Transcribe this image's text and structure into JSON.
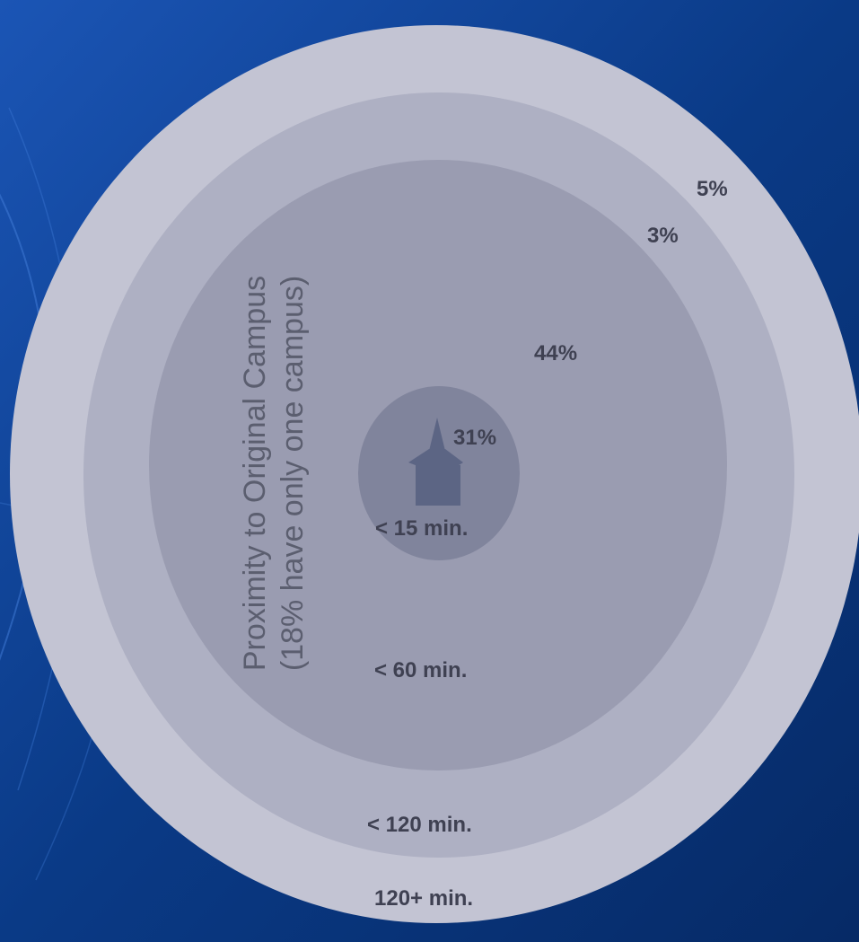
{
  "title": {
    "line1": "Proximity to Original Campus",
    "line2": "(18% have only one campus)"
  },
  "rings": [
    {
      "id": "ring-120plus",
      "time_label": "120+ min.",
      "percent_label": "5%",
      "color": "#c3c4d3"
    },
    {
      "id": "ring-120",
      "time_label": "< 120 min.",
      "percent_label": "3%",
      "color": "#aeb0c3"
    },
    {
      "id": "ring-60",
      "time_label": "< 60 min.",
      "percent_label": "44%",
      "color": "#9a9cb1"
    },
    {
      "id": "ring-15",
      "time_label": "< 15 min.",
      "percent_label": "31%",
      "color": "#80849c"
    }
  ],
  "icons": {
    "church": {
      "name": "church-icon",
      "color": "#5c6584"
    }
  },
  "colors": {
    "background": "#0a3a86",
    "label_text": "#3f4152",
    "title_text": "#5b5e6f"
  }
}
